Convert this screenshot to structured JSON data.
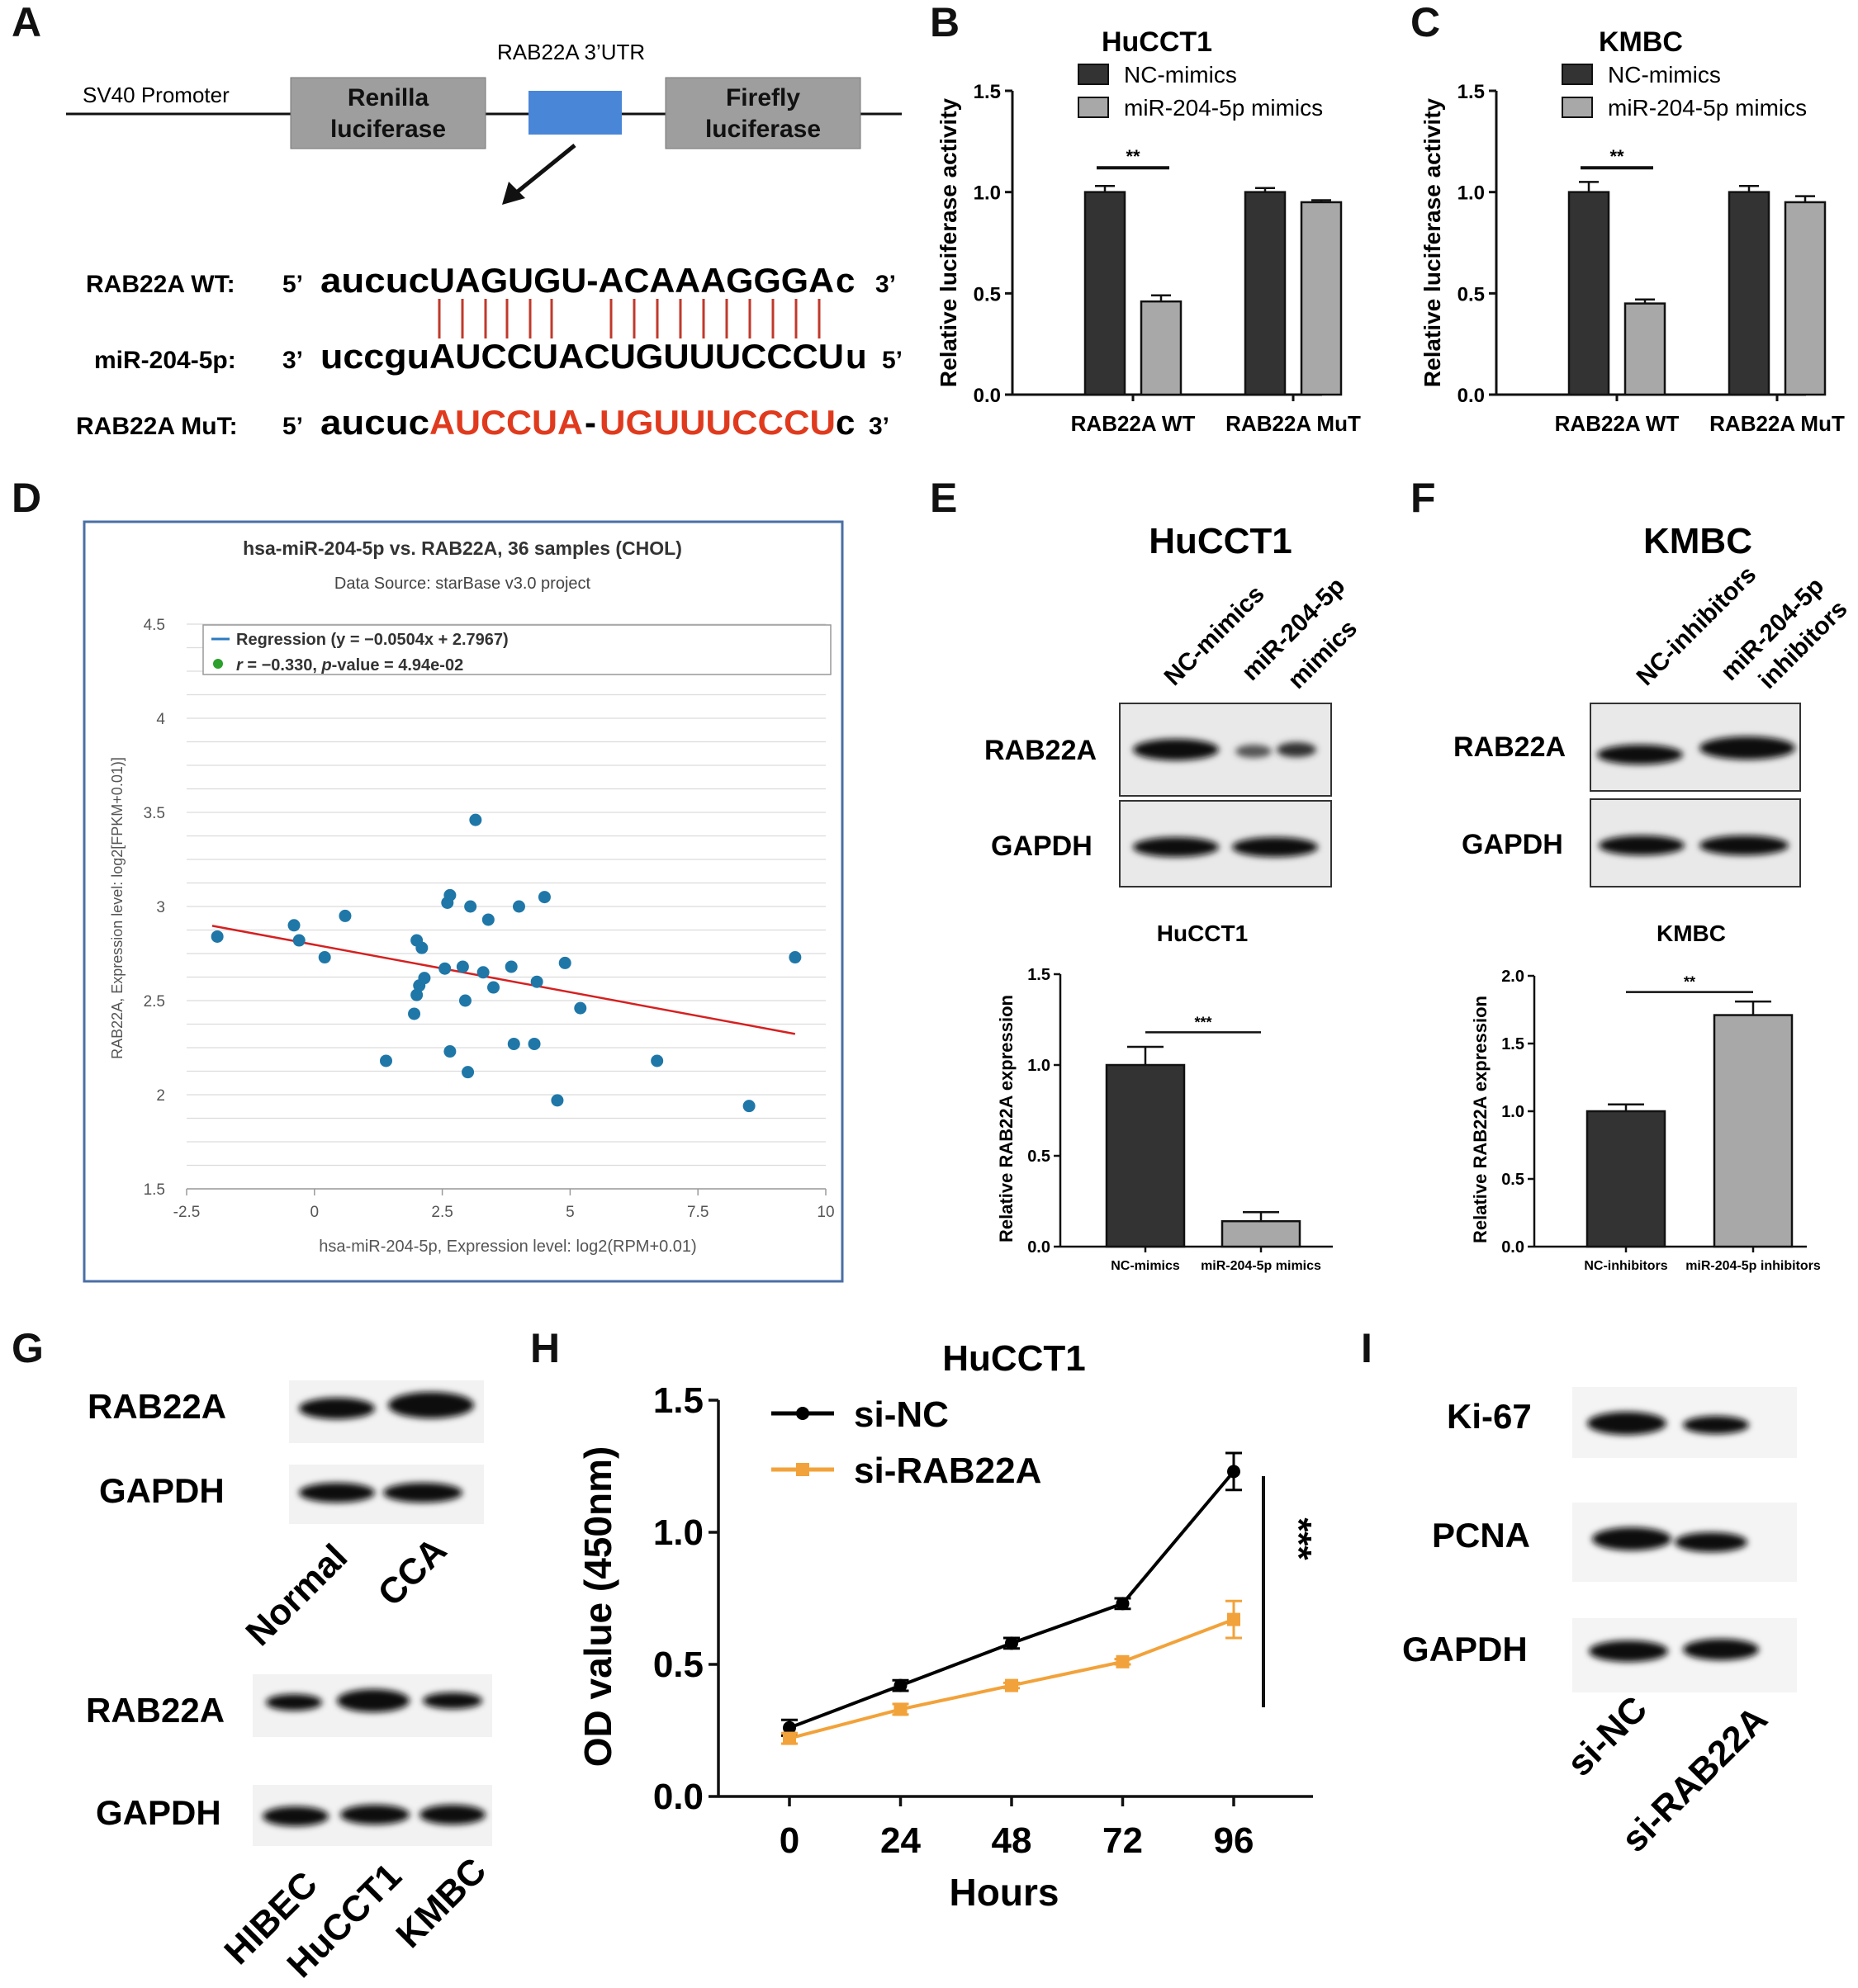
{
  "panels": {
    "A": "A",
    "B": "B",
    "C": "C",
    "D": "D",
    "E": "E",
    "F": "F",
    "G": "G",
    "H": "H",
    "I": "I"
  },
  "panelA": {
    "utr_label": "RAB22A  3’UTR",
    "promoter": "SV40 Promoter",
    "renilla_1": "Renilla",
    "renilla_2": "luciferase",
    "firefly_1": "Firefly",
    "firefly_2": "luciferase",
    "wt_label": "RAB22A  WT:",
    "wt_5": "5’",
    "wt_lower": "aucuc",
    "wt_upper": "UAGUGU-ACAAAGGGA",
    "wt_end": "c",
    "wt_3": "3’",
    "mir_label": "miR-204-5p:",
    "mir_3": "3’",
    "mir_lower": "uccgu",
    "mir_upper": "AUCCUACUGUUUCCCU",
    "mir_end": "u",
    "mir_5": "5’",
    "mut_label": "RAB22A  MuT:",
    "mut_5": "5’",
    "mut_lower": "aucuc",
    "mut_red1": "AUCCUA",
    "mut_dash": "-",
    "mut_red2": "UGUUUCCCU",
    "mut_end": "c",
    "mut_3": "3’",
    "colors": {
      "utr_box": "#4a86d8",
      "grey_box": "#9e9e9e",
      "pair_line": "#c0392b",
      "mut_red": "#e03a1e"
    }
  },
  "luc_B": {
    "chart_data": {
      "type": "bar",
      "title": "HuCCT1",
      "ylabel": "Relative  luciferase activity",
      "categories": [
        "RAB22A WT",
        "RAB22A MuT"
      ],
      "ylim": [
        0,
        1.5
      ],
      "yticks": [
        "0.0",
        "0.5",
        "1.0",
        "1.5"
      ],
      "series": [
        {
          "name": "NC-mimics",
          "values": [
            1.0,
            1.0
          ],
          "errors": [
            0.03,
            0.02
          ],
          "color": "#333333"
        },
        {
          "name": "miR-204-5p mimics",
          "values": [
            0.46,
            0.95
          ],
          "errors": [
            0.03,
            0.01
          ],
          "color": "#a8a8a8"
        }
      ],
      "significance": "**"
    }
  },
  "luc_C": {
    "chart_data": {
      "type": "bar",
      "title": "KMBC",
      "ylabel": "Relative  luciferase activity",
      "categories": [
        "RAB22A WT",
        "RAB22A MuT"
      ],
      "ylim": [
        0,
        1.5
      ],
      "yticks": [
        "0.0",
        "0.5",
        "1.0",
        "1.5"
      ],
      "series": [
        {
          "name": "NC-mimics",
          "values": [
            1.0,
            1.0
          ],
          "errors": [
            0.05,
            0.03
          ],
          "color": "#333333"
        },
        {
          "name": "miR-204-5p mimics",
          "values": [
            0.45,
            0.95
          ],
          "errors": [
            0.02,
            0.03
          ],
          "color": "#a8a8a8"
        }
      ],
      "significance": "**"
    }
  },
  "scatter_D": {
    "chart_data": {
      "type": "scatter",
      "title": "hsa-miR-204-5p vs. RAB22A, 36 samples (CHOL)",
      "subtitle": "Data Source: starBase v3.0 project",
      "xlabel": "hsa-miR-204-5p, Expression level: log2(RPM+0.01)",
      "ylabel": "RAB22A, Expression level: log2[FPKM+0.01)]",
      "xlim": [
        -2.5,
        10
      ],
      "ylim": [
        1.5,
        4.5
      ],
      "xticks": [
        "-2.5",
        "0",
        "2.5",
        "5",
        "7.5",
        "10"
      ],
      "yticks": [
        "1.5",
        "2",
        "2.5",
        "3",
        "3.5",
        "4",
        "4.5"
      ],
      "legend_regression": "Regression (y = −0.0504x + 2.7967)",
      "legend_r_italic": "r",
      "legend_r_rest": " = −0.330, ",
      "legend_p_italic": "p",
      "legend_p_rest": "-value = 4.94e-02",
      "regression": {
        "slope": -0.0504,
        "intercept": 2.7967,
        "x_from": -2.0,
        "x_to": 9.4
      },
      "points": [
        [
          -1.9,
          2.84
        ],
        [
          -0.4,
          2.9
        ],
        [
          -0.3,
          2.82
        ],
        [
          0.2,
          2.73
        ],
        [
          0.6,
          2.95
        ],
        [
          1.4,
          2.18
        ],
        [
          1.95,
          2.43
        ],
        [
          2.0,
          2.53
        ],
        [
          2.0,
          2.82
        ],
        [
          2.05,
          2.58
        ],
        [
          2.1,
          2.78
        ],
        [
          2.15,
          2.62
        ],
        [
          2.55,
          2.67
        ],
        [
          2.6,
          3.02
        ],
        [
          2.65,
          3.06
        ],
        [
          2.65,
          2.23
        ],
        [
          2.9,
          2.68
        ],
        [
          2.95,
          2.5
        ],
        [
          3.0,
          2.12
        ],
        [
          3.05,
          3.0
        ],
        [
          3.15,
          3.46
        ],
        [
          3.3,
          2.65
        ],
        [
          3.4,
          2.93
        ],
        [
          3.5,
          2.57
        ],
        [
          3.85,
          2.68
        ],
        [
          3.9,
          2.27
        ],
        [
          4.0,
          3.0
        ],
        [
          4.3,
          2.27
        ],
        [
          4.35,
          2.6
        ],
        [
          4.5,
          3.05
        ],
        [
          4.75,
          1.97
        ],
        [
          4.9,
          2.7
        ],
        [
          5.2,
          2.46
        ],
        [
          6.7,
          2.18
        ],
        [
          8.5,
          1.94
        ],
        [
          9.4,
          2.73
        ]
      ],
      "colors": {
        "point": "#1f77a8",
        "line": "#d62020",
        "legend_line": "#2a7bc0",
        "legend_dot": "#2ca02c",
        "frame": "#4a6fa5"
      }
    }
  },
  "blot_E": {
    "title": "HuCCT1",
    "lane1": "NC-mimics",
    "lane2a": "miR-204-5p",
    "lane2b": "mimics",
    "row1": "RAB22A",
    "row2": "GAPDH"
  },
  "blot_F": {
    "title": "KMBC",
    "lane1": "NC-inhibitors",
    "lane2a": "miR-204-5p",
    "lane2b": "inhibitors",
    "row1": "RAB22A",
    "row2": "GAPDH"
  },
  "bar_E": {
    "chart_data": {
      "type": "bar",
      "title": "HuCCT1",
      "ylabel": "Relative RAB22A expression",
      "categories": [
        "NC-mimics",
        "miR-204-5p mimics"
      ],
      "values": [
        1.0,
        0.14
      ],
      "errors": [
        0.1,
        0.05
      ],
      "colors": [
        "#333333",
        "#a8a8a8"
      ],
      "ylim": [
        0,
        1.5
      ],
      "yticks": [
        "0.0",
        "0.5",
        "1.0",
        "1.5"
      ],
      "significance": "***"
    }
  },
  "bar_F": {
    "chart_data": {
      "type": "bar",
      "title": "KMBC",
      "ylabel": "Relative RAB22A expression",
      "categories": [
        "NC-inhibitors",
        "miR-204-5p inhibitors"
      ],
      "values": [
        1.0,
        1.71
      ],
      "errors": [
        0.05,
        0.1
      ],
      "colors": [
        "#333333",
        "#a8a8a8"
      ],
      "ylim": [
        0,
        2.0
      ],
      "yticks": [
        "0.0",
        "0.5",
        "1.0",
        "1.5",
        "2.0"
      ],
      "significance": "**"
    }
  },
  "blot_G": {
    "row1": "RAB22A",
    "row2": "GAPDH",
    "lane1": "Normal",
    "lane2": "CCA",
    "row3": "RAB22A",
    "row4": "GAPDH",
    "lane3": "HIBEC",
    "lane4": "HuCCT1",
    "lane5": "KMBC"
  },
  "line_H": {
    "chart_data": {
      "type": "line",
      "title": "HuCCT1",
      "xlabel": "Hours",
      "ylabel": "OD value (450nm)",
      "x": [
        0,
        24,
        48,
        72,
        96
      ],
      "xticks": [
        "0",
        "24",
        "48",
        "72",
        "96"
      ],
      "ylim": [
        0,
        1.5
      ],
      "yticks": [
        "0.0",
        "0.5",
        "1.0",
        "1.5"
      ],
      "series": [
        {
          "name": "si-NC",
          "values": [
            0.26,
            0.42,
            0.58,
            0.73,
            1.23
          ],
          "errors": [
            0.03,
            0.02,
            0.02,
            0.02,
            0.07
          ],
          "color": "#000000",
          "marker": "circle"
        },
        {
          "name": "si-RAB22A",
          "values": [
            0.22,
            0.33,
            0.42,
            0.51,
            0.67
          ],
          "errors": [
            0.02,
            0.02,
            0.01,
            0.01,
            0.07
          ],
          "color": "#f2a23a",
          "marker": "square"
        }
      ],
      "significance": "***"
    }
  },
  "blot_I": {
    "row1": "Ki-67",
    "row2": "PCNA",
    "row3": "GAPDH",
    "lane1": "si-NC",
    "lane2": "si-RAB22A"
  }
}
